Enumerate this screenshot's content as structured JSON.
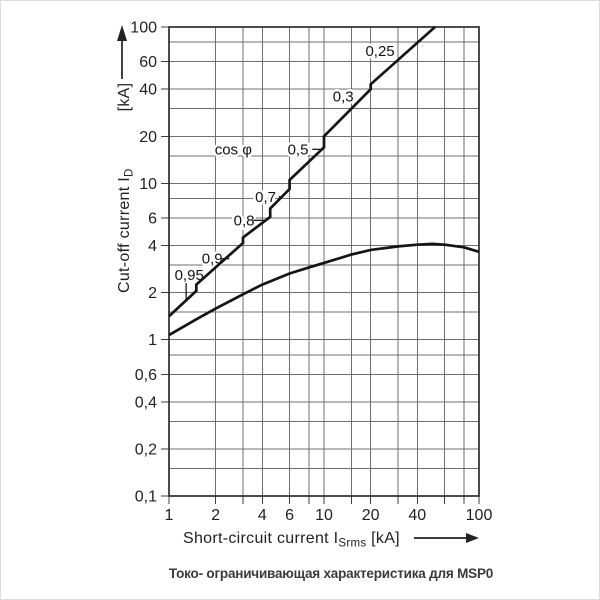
{
  "figure": {
    "caption": "Токо- ограничивающая характеристика для MSP0"
  },
  "chart_data": {
    "type": "line",
    "scale": "log-log",
    "grid": true,
    "x_axis": {
      "title": "Short-circuit current",
      "quantity": "I",
      "quantity_sub": "Srms",
      "unit": "[kA]",
      "min": 1,
      "max": 100,
      "gridlines": [
        1,
        2,
        3,
        4,
        6,
        8,
        10,
        15,
        20,
        30,
        40,
        60,
        80,
        100
      ],
      "labeled_ticks": [
        {
          "value": 1,
          "label": "1"
        },
        {
          "value": 2,
          "label": "2"
        },
        {
          "value": 4,
          "label": "4"
        },
        {
          "value": 6,
          "label": "6"
        },
        {
          "value": 10,
          "label": "10"
        },
        {
          "value": 20,
          "label": "20"
        },
        {
          "value": 40,
          "label": "40"
        },
        {
          "value": 100,
          "label": "100"
        }
      ]
    },
    "y_axis": {
      "title": "Cut-off current",
      "quantity": "I",
      "quantity_sub": "D",
      "unit": "[kA]",
      "min": 0.1,
      "max": 100,
      "gridlines": [
        0.1,
        0.15,
        0.2,
        0.3,
        0.4,
        0.6,
        0.8,
        1,
        1.5,
        2,
        3,
        4,
        6,
        8,
        10,
        15,
        20,
        30,
        40,
        60,
        80,
        100
      ],
      "labeled_ticks": [
        {
          "value": 100,
          "label": "100"
        },
        {
          "value": 60,
          "label": "60"
        },
        {
          "value": 40,
          "label": "40"
        },
        {
          "value": 20,
          "label": "20"
        },
        {
          "value": 10,
          "label": "10"
        },
        {
          "value": 6,
          "label": "6"
        },
        {
          "value": 4,
          "label": "4"
        },
        {
          "value": 2,
          "label": "2"
        },
        {
          "value": 1,
          "label": "1"
        },
        {
          "value": 0.6,
          "label": "0,6"
        },
        {
          "value": 0.4,
          "label": "0,4"
        },
        {
          "value": 0.2,
          "label": "0,2"
        },
        {
          "value": 0.1,
          "label": "0,1"
        }
      ]
    },
    "series": [
      {
        "name": "prospective-peak-current-by-cos-phi",
        "points": [
          [
            1,
            1.41
          ],
          [
            1.5,
            2.05
          ],
          [
            1.5,
            2.25
          ],
          [
            3,
            4.15
          ],
          [
            3,
            4.5
          ],
          [
            4.5,
            6.1
          ],
          [
            4.5,
            6.9
          ],
          [
            6,
            9.2
          ],
          [
            6,
            10.5
          ],
          [
            10,
            17
          ],
          [
            10,
            20
          ],
          [
            20,
            40
          ],
          [
            20,
            43
          ],
          [
            52,
            100
          ]
        ]
      },
      {
        "name": "cut-off-current-characteristic",
        "points": [
          [
            1,
            1.07
          ],
          [
            1.5,
            1.35
          ],
          [
            2,
            1.58
          ],
          [
            3,
            1.95
          ],
          [
            4,
            2.25
          ],
          [
            6,
            2.65
          ],
          [
            8,
            2.9
          ],
          [
            10,
            3.1
          ],
          [
            15,
            3.5
          ],
          [
            20,
            3.75
          ],
          [
            30,
            3.95
          ],
          [
            40,
            4.05
          ],
          [
            50,
            4.1
          ],
          [
            60,
            4.05
          ],
          [
            80,
            3.9
          ],
          [
            100,
            3.65
          ]
        ]
      }
    ],
    "annotations": {
      "group_label": "cos φ",
      "group_label_pos": [
        2.6,
        16.5
      ],
      "cos_phi_labels": [
        {
          "text": "0,95",
          "pos": [
            1.35,
            2.6
          ]
        },
        {
          "text": "0,9",
          "pos": [
            1.9,
            3.3
          ]
        },
        {
          "text": "0,8",
          "pos": [
            3.05,
            5.8
          ]
        },
        {
          "text": "0,7",
          "pos": [
            4.2,
            8.2
          ]
        },
        {
          "text": "0,5",
          "pos": [
            6.8,
            16.5
          ]
        },
        {
          "text": "0,3",
          "pos": [
            13.3,
            36
          ]
        },
        {
          "text": "0,25",
          "pos": [
            23,
            70
          ]
        }
      ],
      "leaders": [
        {
          "from": [
            1.29,
            2.3
          ],
          "to": [
            1.29,
            1.8
          ]
        },
        {
          "from": [
            2.2,
            3.3
          ],
          "to": [
            2.45,
            3.3
          ]
        },
        {
          "from": [
            3.5,
            5.8
          ],
          "to": [
            4.15,
            5.8
          ]
        },
        {
          "from": [
            5.1,
            8.2
          ],
          "to": [
            5.45,
            8.2
          ]
        },
        {
          "from": [
            8.4,
            16.5
          ],
          "to": [
            9.6,
            16.5
          ]
        }
      ]
    },
    "colors": {
      "curve": "#151515",
      "grid": "#6f6f6f",
      "border": "#2d2d2d",
      "text": "#222222"
    }
  }
}
